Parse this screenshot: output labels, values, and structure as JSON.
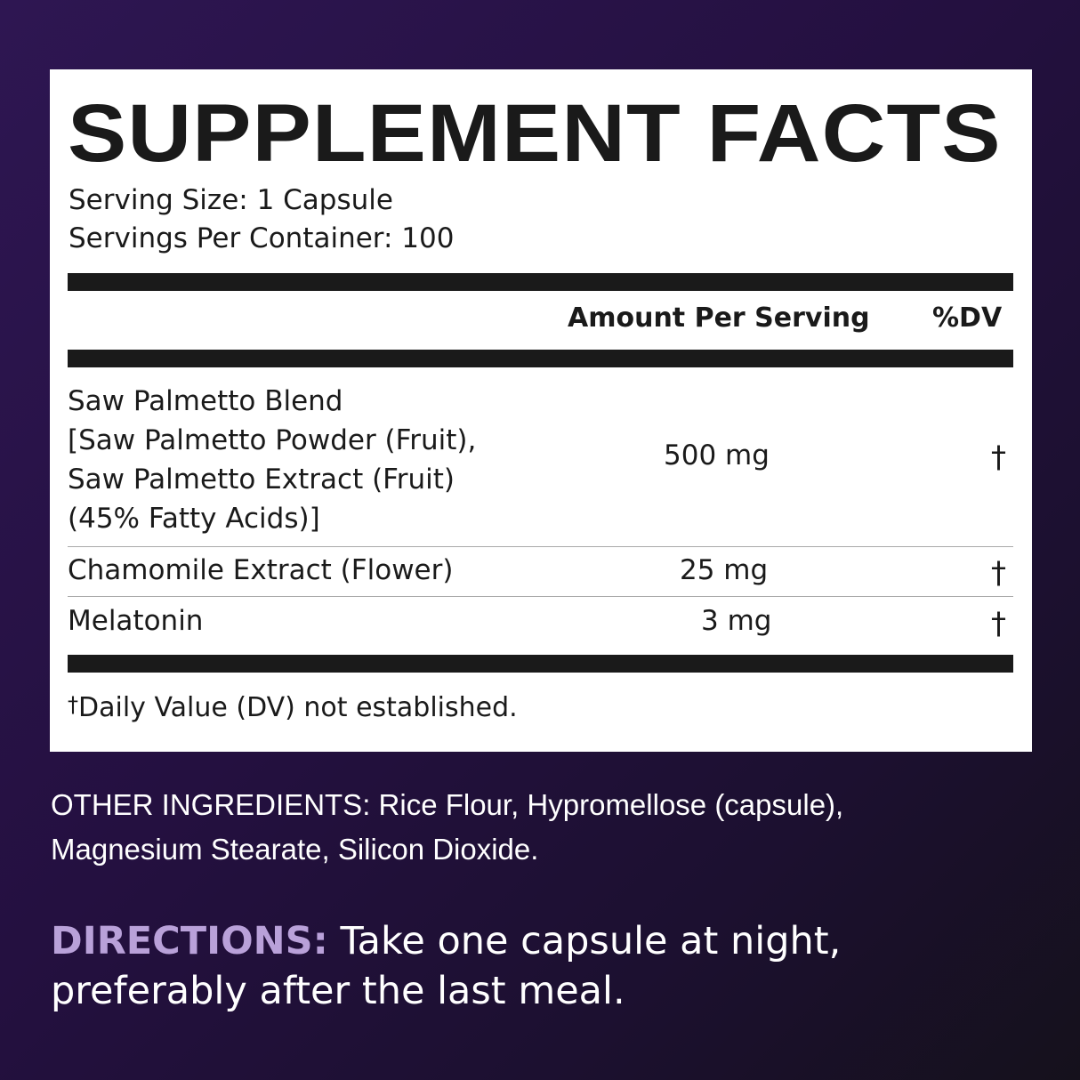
{
  "title": "SUPPLEMENT FACTS",
  "serving_size": "Serving Size: 1 Capsule",
  "servings_per_container": "Servings Per Container: 100",
  "header": {
    "amount": "Amount Per Serving",
    "dv": "%DV"
  },
  "rows": [
    {
      "name_lines": [
        "Saw Palmetto Blend",
        "[Saw Palmetto Powder (Fruit),",
        "Saw Palmetto Extract (Fruit)",
        "(45% Fatty Acids)]"
      ],
      "amount": "500 mg",
      "dv": "†"
    },
    {
      "name": "Chamomile Extract (Flower)",
      "amount": "25 mg",
      "dv": "†"
    },
    {
      "name": "Melatonin",
      "amount": "3 mg",
      "dv": "†"
    }
  ],
  "footnote": {
    "mark": "†",
    "text": "Daily Value (DV) not established."
  },
  "other_ingredients": {
    "line1": "OTHER INGREDIENTS: Rice Flour, Hypromellose (capsule),",
    "line2": "Magnesium Stearate, Silicon Dioxide."
  },
  "directions": {
    "label": "DIRECTIONS:",
    "line1": " Take one capsule at night,",
    "line2": "preferably after the last meal."
  },
  "colors": {
    "background": "#241040",
    "accent": "#b9a1d9",
    "panel": "#ffffff"
  }
}
